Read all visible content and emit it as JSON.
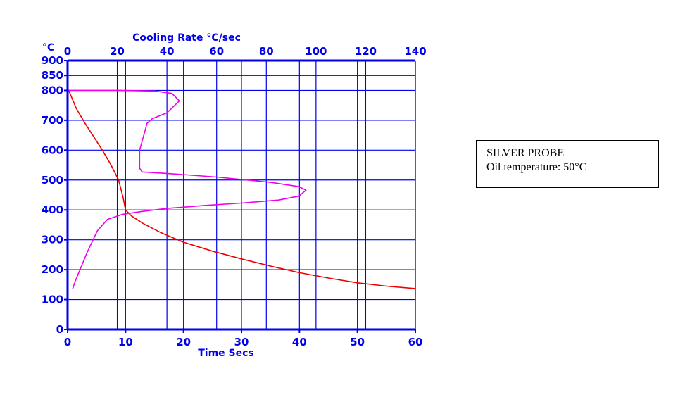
{
  "chart_data": {
    "type": "line",
    "title": "",
    "y_unit_label": "°C",
    "xlabel": "Time Secs",
    "x2label": "Cooling Rate  °C/sec",
    "xlim": [
      0,
      60
    ],
    "x2lim": [
      0,
      140
    ],
    "ylim": [
      0,
      900
    ],
    "x_ticks": [
      0,
      10,
      20,
      30,
      40,
      50,
      60
    ],
    "x2_ticks": [
      0,
      20,
      40,
      60,
      80,
      100,
      120,
      140
    ],
    "y_ticks": [
      0,
      100,
      200,
      300,
      400,
      500,
      600,
      700,
      800,
      850,
      900
    ],
    "grid": true,
    "series": [
      {
        "color": "#ee0000",
        "axis": "time",
        "points": [
          [
            0.2,
            800
          ],
          [
            1.5,
            740
          ],
          [
            3,
            690
          ],
          [
            4.5,
            645
          ],
          [
            6,
            600
          ],
          [
            7.5,
            550
          ],
          [
            8.8,
            500
          ],
          [
            9.6,
            440
          ],
          [
            10,
            400
          ],
          [
            11,
            380
          ],
          [
            13,
            355
          ],
          [
            16,
            325
          ],
          [
            20,
            292
          ],
          [
            25,
            262
          ],
          [
            30,
            236
          ],
          [
            35,
            212
          ],
          [
            40,
            190
          ],
          [
            45,
            172
          ],
          [
            50,
            156
          ],
          [
            55,
            145
          ],
          [
            60,
            137
          ]
        ]
      },
      {
        "color": "#ee00ee",
        "axis": "rate",
        "points": [
          [
            2,
            135
          ],
          [
            3,
            160
          ],
          [
            5,
            200
          ],
          [
            8,
            260
          ],
          [
            12,
            330
          ],
          [
            16,
            368
          ],
          [
            22,
            385
          ],
          [
            30,
            395
          ],
          [
            40,
            405
          ],
          [
            55,
            415
          ],
          [
            70,
            423
          ],
          [
            85,
            433
          ],
          [
            93,
            446
          ],
          [
            96,
            466
          ],
          [
            93,
            478
          ],
          [
            82,
            492
          ],
          [
            60,
            510
          ],
          [
            40,
            522
          ],
          [
            30,
            527
          ],
          [
            29,
            540
          ],
          [
            29,
            600
          ],
          [
            31,
            660
          ],
          [
            32,
            690
          ],
          [
            34,
            705
          ],
          [
            40,
            725
          ],
          [
            45,
            765
          ],
          [
            42,
            790
          ],
          [
            35,
            798
          ],
          [
            20,
            800
          ],
          [
            0,
            800
          ]
        ]
      }
    ]
  },
  "info_box": {
    "line1": "SILVER PROBE",
    "line2": "Oil temperature: 50°C"
  }
}
